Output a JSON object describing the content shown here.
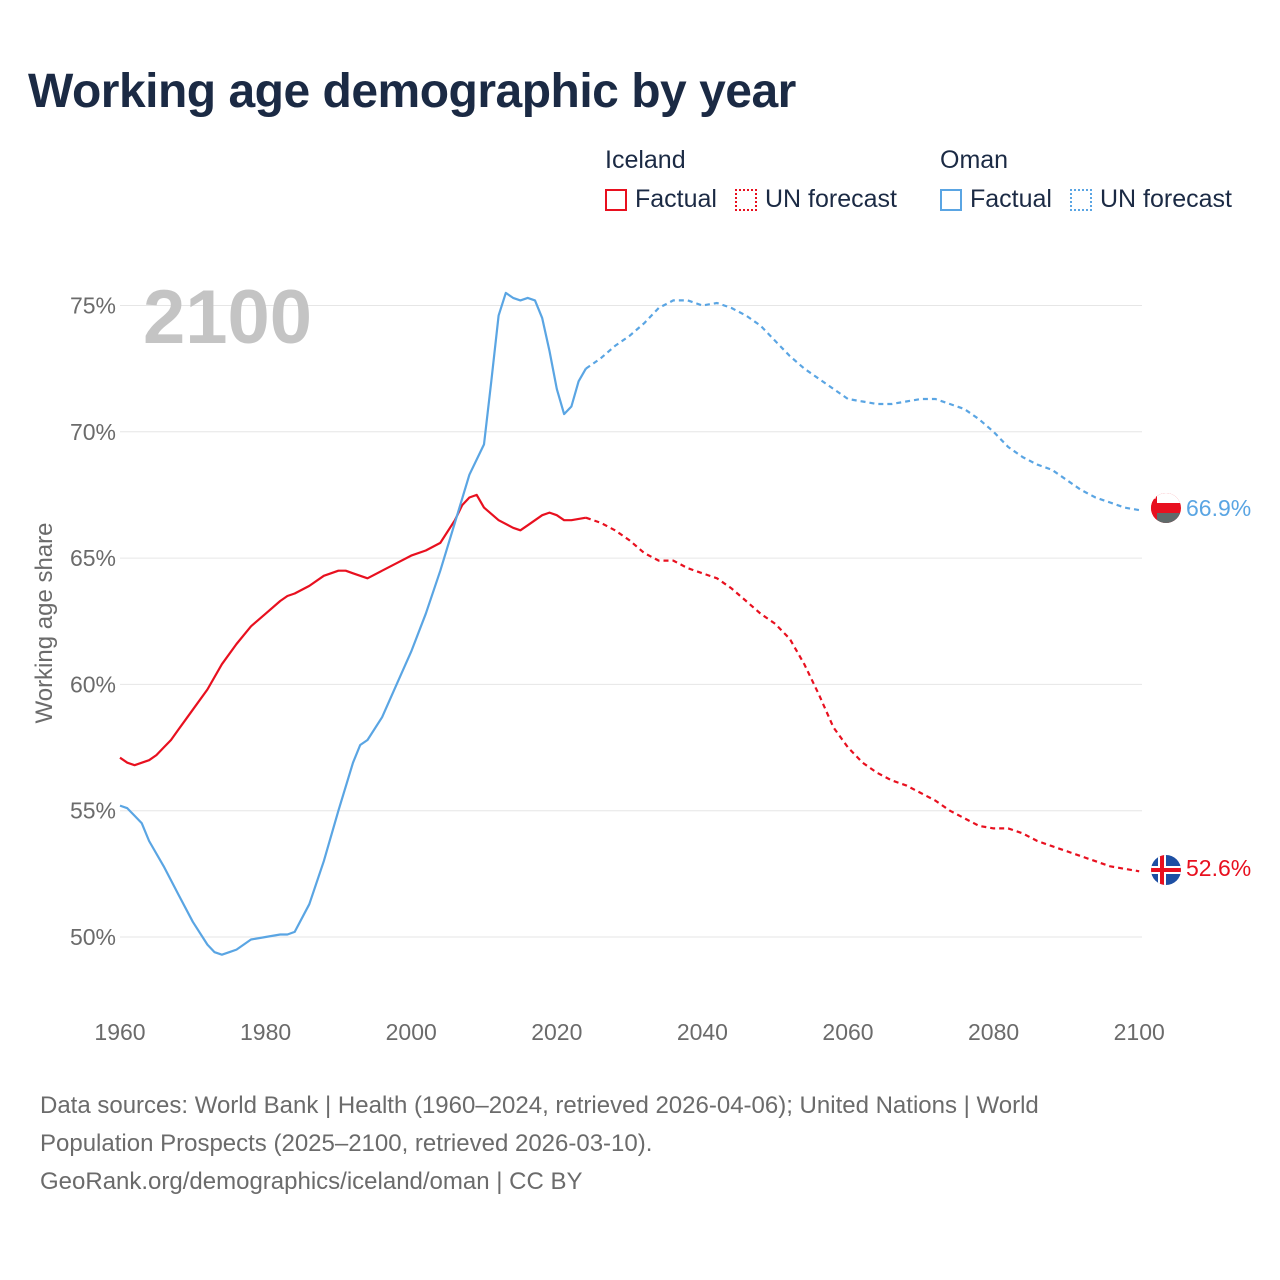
{
  "title": "Working age demographic by year",
  "legend": {
    "groups": [
      {
        "name": "Iceland",
        "factual_label": "Factual",
        "forecast_label": "UN forecast",
        "color": "#e8101f"
      },
      {
        "name": "Oman",
        "factual_label": "Factual",
        "forecast_label": "UN forecast",
        "color": "#5aa5e3"
      }
    ]
  },
  "colors": {
    "iceland": "#e8101f",
    "oman": "#5aa5e3",
    "grid": "#e6e6e6",
    "axis_text": "#6b6b6b",
    "year": "#c4c4c4"
  },
  "chart_data": {
    "type": "line",
    "title": "Working age demographic by year",
    "year_label": "2100",
    "xlabel": "",
    "ylabel": "Working age share",
    "xlim": [
      1960,
      2103
    ],
    "ylim": [
      48.5,
      76.5
    ],
    "x_ticks": [
      1960,
      1980,
      2000,
      2020,
      2040,
      2060,
      2080,
      2100
    ],
    "y_ticks": [
      {
        "value": 50,
        "label": "50%"
      },
      {
        "value": 55,
        "label": "55%"
      },
      {
        "value": 60,
        "label": "60%"
      },
      {
        "value": 65,
        "label": "65%"
      },
      {
        "value": 70,
        "label": "70%"
      },
      {
        "value": 75,
        "label": "75%"
      }
    ],
    "grid": true,
    "factual_end": 2024,
    "series": [
      {
        "name": "Iceland",
        "key": "iceland",
        "end_label": "52.6%",
        "x": [
          1960,
          1961,
          1962,
          1963,
          1964,
          1965,
          1966,
          1967,
          1968,
          1969,
          1970,
          1972,
          1974,
          1976,
          1978,
          1980,
          1982,
          1983,
          1984,
          1986,
          1988,
          1990,
          1991,
          1992,
          1994,
          1996,
          1998,
          2000,
          2002,
          2004,
          2006,
          2007,
          2008,
          2009,
          2010,
          2012,
          2014,
          2015,
          2016,
          2018,
          2019,
          2020,
          2021,
          2022,
          2024,
          2026,
          2028,
          2030,
          2032,
          2034,
          2036,
          2038,
          2040,
          2042,
          2044,
          2046,
          2048,
          2050,
          2052,
          2054,
          2056,
          2058,
          2060,
          2062,
          2064,
          2066,
          2068,
          2070,
          2072,
          2074,
          2076,
          2078,
          2080,
          2082,
          2084,
          2086,
          2088,
          2090,
          2092,
          2094,
          2096,
          2098,
          2100
        ],
        "y": [
          57.1,
          56.9,
          56.8,
          56.9,
          57.0,
          57.2,
          57.5,
          57.8,
          58.2,
          58.6,
          59.0,
          59.8,
          60.8,
          61.6,
          62.3,
          62.8,
          63.3,
          63.5,
          63.6,
          63.9,
          64.3,
          64.5,
          64.5,
          64.4,
          64.2,
          64.5,
          64.8,
          65.1,
          65.3,
          65.6,
          66.5,
          67.1,
          67.4,
          67.5,
          67.0,
          66.5,
          66.2,
          66.1,
          66.3,
          66.7,
          66.8,
          66.7,
          66.5,
          66.5,
          66.6,
          66.4,
          66.1,
          65.7,
          65.2,
          64.9,
          64.9,
          64.6,
          64.4,
          64.2,
          63.8,
          63.3,
          62.8,
          62.4,
          61.8,
          60.8,
          59.6,
          58.3,
          57.5,
          56.9,
          56.5,
          56.2,
          56.0,
          55.7,
          55.4,
          55.0,
          54.7,
          54.4,
          54.3,
          54.3,
          54.1,
          53.8,
          53.6,
          53.4,
          53.2,
          53.0,
          52.8,
          52.7,
          52.6
        ]
      },
      {
        "name": "Oman",
        "key": "oman",
        "end_label": "66.9%",
        "x": [
          1960,
          1961,
          1962,
          1963,
          1964,
          1966,
          1968,
          1970,
          1972,
          1973,
          1974,
          1975,
          1976,
          1978,
          1980,
          1982,
          1983,
          1984,
          1986,
          1988,
          1990,
          1992,
          1993,
          1994,
          1996,
          1998,
          2000,
          2002,
          2004,
          2006,
          2008,
          2010,
          2011,
          2012,
          2013,
          2014,
          2015,
          2016,
          2017,
          2018,
          2019,
          2020,
          2021,
          2022,
          2023,
          2024,
          2026,
          2028,
          2030,
          2032,
          2034,
          2036,
          2038,
          2040,
          2042,
          2044,
          2046,
          2048,
          2050,
          2052,
          2054,
          2056,
          2058,
          2060,
          2062,
          2064,
          2066,
          2068,
          2070,
          2072,
          2074,
          2076,
          2078,
          2080,
          2082,
          2084,
          2086,
          2088,
          2090,
          2092,
          2094,
          2096,
          2098,
          2100
        ],
        "y": [
          55.2,
          55.1,
          54.8,
          54.5,
          53.8,
          52.8,
          51.7,
          50.6,
          49.7,
          49.4,
          49.3,
          49.4,
          49.5,
          49.9,
          50.0,
          50.1,
          50.1,
          50.2,
          51.3,
          53.0,
          55.0,
          56.9,
          57.6,
          57.8,
          58.7,
          60.0,
          61.3,
          62.8,
          64.5,
          66.4,
          68.3,
          69.5,
          72.0,
          74.6,
          75.5,
          75.3,
          75.2,
          75.3,
          75.2,
          74.5,
          73.2,
          71.7,
          70.7,
          71.0,
          72.0,
          72.5,
          72.9,
          73.4,
          73.8,
          74.3,
          74.9,
          75.2,
          75.2,
          75.0,
          75.1,
          74.9,
          74.6,
          74.2,
          73.6,
          73.0,
          72.5,
          72.1,
          71.7,
          71.3,
          71.2,
          71.1,
          71.1,
          71.2,
          71.3,
          71.3,
          71.1,
          70.9,
          70.5,
          70.0,
          69.4,
          69.0,
          68.7,
          68.5,
          68.1,
          67.7,
          67.4,
          67.2,
          67.0,
          66.9
        ]
      }
    ]
  },
  "footer": {
    "line1": "Data sources: World Bank | Health (1960–2024, retrieved 2026-04-06); United Nations | World",
    "line2": "Population Prospects (2025–2100, retrieved 2026-03-10).",
    "line3": "GeoRank.org/demographics/iceland/oman | CC BY"
  }
}
